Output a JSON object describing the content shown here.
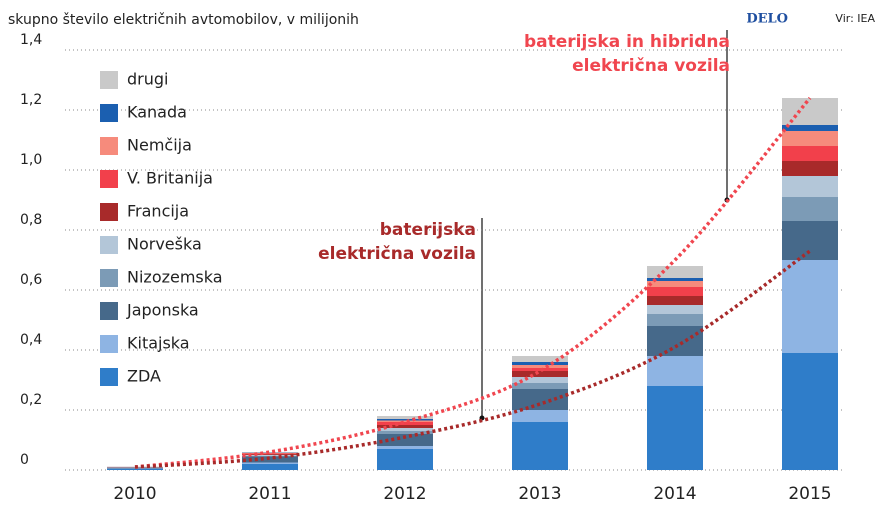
{
  "chart_data": {
    "type": "stacked_bar",
    "title": "skupno število električnih avtomobilov, v milijonih",
    "brand": "DELO",
    "source": "Vir: IEA",
    "categories": [
      "2010",
      "2011",
      "2012",
      "2013",
      "2014",
      "2015"
    ],
    "ylim": [
      0,
      1.4
    ],
    "yticks": [
      0,
      {
        "value": 0.2,
        "label": "0,2"
      },
      {
        "value": 0.4,
        "label": "0,4"
      },
      {
        "value": 0.6,
        "label": "0,6"
      },
      {
        "value": 0.8,
        "label": "0,8"
      },
      {
        "value": 1.0,
        "label": "1,0"
      },
      {
        "value": 1.2,
        "label": "1,2"
      },
      {
        "value": 1.4,
        "label": "1,4"
      }
    ],
    "grid": true,
    "series": [
      {
        "name": "ZDA",
        "color": "#2f7dc9",
        "values": [
          0.004,
          0.02,
          0.07,
          0.16,
          0.28,
          0.39
        ]
      },
      {
        "name": "Kitajska",
        "color": "#8eb4e3",
        "values": [
          0.001,
          0.005,
          0.01,
          0.04,
          0.1,
          0.31
        ]
      },
      {
        "name": "Japonska",
        "color": "#46698a",
        "values": [
          0.003,
          0.02,
          0.04,
          0.07,
          0.1,
          0.13
        ]
      },
      {
        "name": "Nizozemska",
        "color": "#7c9bb6",
        "values": [
          0.0005,
          0.002,
          0.01,
          0.02,
          0.04,
          0.08
        ]
      },
      {
        "name": "Norveška",
        "color": "#b3c6d8",
        "values": [
          0.0005,
          0.003,
          0.01,
          0.02,
          0.03,
          0.07
        ]
      },
      {
        "name": "Francija",
        "color": "#a82a2a",
        "values": [
          0.0005,
          0.003,
          0.01,
          0.02,
          0.03,
          0.05
        ]
      },
      {
        "name": "V. Britanija",
        "color": "#f2404b",
        "values": [
          0.0005,
          0.002,
          0.01,
          0.01,
          0.03,
          0.05
        ]
      },
      {
        "name": "Nemčija",
        "color": "#f68b7c",
        "values": [
          0.0005,
          0.002,
          0.005,
          0.01,
          0.02,
          0.05
        ]
      },
      {
        "name": "Kanada",
        "color": "#1b5fb0",
        "values": [
          0.0002,
          0.001,
          0.005,
          0.01,
          0.01,
          0.02
        ]
      },
      {
        "name": "drugi",
        "color": "#c9c9c9",
        "values": [
          0.0005,
          0.002,
          0.01,
          0.02,
          0.04,
          0.09
        ]
      }
    ],
    "lines": [
      {
        "name": [
          "baterijska in hibridna",
          "električna vozila"
        ],
        "color": "#f0464f",
        "values": [
          0.01,
          0.06,
          0.16,
          0.33,
          0.7,
          1.24
        ]
      },
      {
        "name": [
          "baterijska",
          "električna vozila"
        ],
        "color": "#a82a2a",
        "values": [
          0.01,
          0.04,
          0.11,
          0.22,
          0.41,
          0.73
        ]
      }
    ]
  }
}
